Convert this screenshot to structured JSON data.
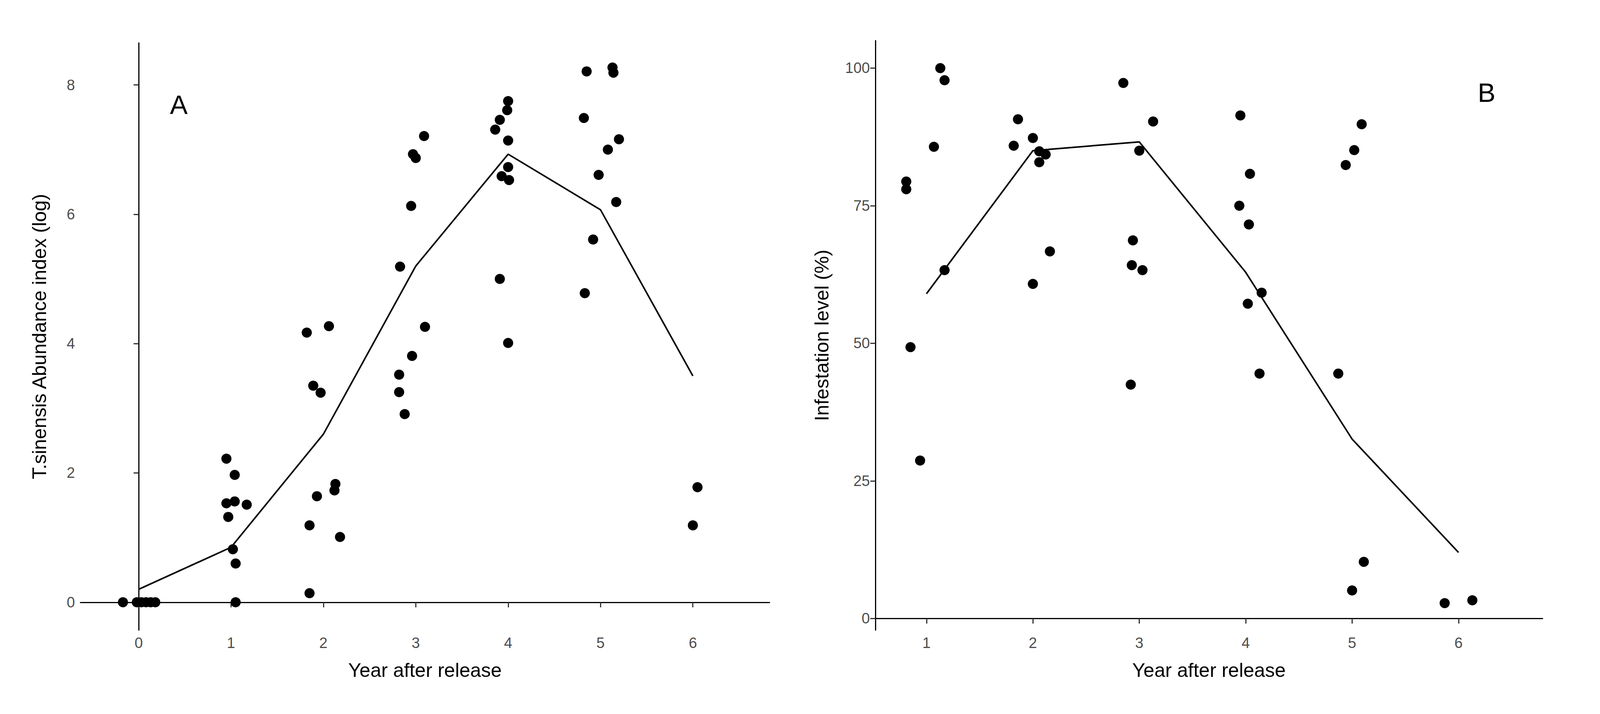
{
  "chart_data": [
    {
      "type": "scatter",
      "annotations": [
        "A"
      ],
      "x_label": "Year after release",
      "y_label": "T.sinensis Abundance index (log)",
      "xlim": [
        -0.63,
        6.83
      ],
      "xticks": [
        0,
        1,
        2,
        3,
        4,
        5,
        6
      ],
      "ylim": [
        -0.43,
        8.65
      ],
      "yticks": [
        0,
        2,
        4,
        6,
        8
      ],
      "grid": false,
      "series": [
        {
          "type": "scatter",
          "color": "#000000",
          "marker": "circle",
          "x": [
            -0.17,
            -0.02,
            0.03,
            0.08,
            0.13,
            0.18,
            0.95,
            1.04,
            0.95,
            1.04,
            1.17,
            0.97,
            1.02,
            1.05,
            1.05,
            1.82,
            2.06,
            1.89,
            1.97,
            2.13,
            2.12,
            1.93,
            1.85,
            2.18,
            1.85,
            3.09,
            2.97,
            3.0,
            2.95,
            2.83,
            3.1,
            2.96,
            2.82,
            2.82,
            2.88,
            4.0,
            3.99,
            3.91,
            3.86,
            4.0,
            4.0,
            3.93,
            4.01,
            3.91,
            4.0,
            5.13,
            4.85,
            5.14,
            4.82,
            5.2,
            5.08,
            4.98,
            5.17,
            4.92,
            4.83,
            6.05,
            6.0
          ],
          "values": [
            0,
            0,
            0,
            0,
            0,
            0,
            2.22,
            1.97,
            1.53,
            1.56,
            1.51,
            1.32,
            0.82,
            0.6,
            0,
            4.17,
            4.27,
            3.35,
            3.24,
            1.83,
            1.73,
            1.64,
            1.19,
            1.01,
            0.14,
            7.21,
            6.93,
            6.87,
            6.13,
            5.19,
            4.26,
            3.81,
            3.52,
            3.25,
            2.91,
            7.75,
            7.61,
            7.46,
            7.31,
            7.14,
            6.73,
            6.59,
            6.53,
            5.0,
            4.01,
            8.27,
            8.21,
            8.19,
            7.49,
            7.16,
            7.0,
            6.61,
            6.19,
            5.61,
            4.78,
            1.78,
            1.19
          ]
        },
        {
          "type": "line",
          "color": "#000000",
          "line_style": "solid",
          "x": [
            0,
            1,
            2,
            3,
            4,
            5,
            6
          ],
          "values": [
            0.2,
            0.85,
            2.6,
            5.2,
            6.93,
            6.07,
            3.5
          ]
        }
      ]
    },
    {
      "type": "scatter",
      "annotations": [
        "B"
      ],
      "x_label": "Year after release",
      "y_label": "Infestation level (%)",
      "xlim": [
        0.52,
        6.79
      ],
      "xticks": [
        1,
        2,
        3,
        4,
        5,
        6
      ],
      "ylim": [
        -2.1,
        105
      ],
      "yticks": [
        0,
        25,
        50,
        75,
        100
      ],
      "grid": false,
      "series": [
        {
          "type": "scatter",
          "color": "#000000",
          "marker": "circle",
          "x": [
            1.13,
            1.17,
            1.07,
            0.81,
            0.81,
            1.17,
            0.85,
            0.94,
            1.86,
            2.0,
            1.82,
            2.06,
            2.12,
            2.06,
            2.16,
            2.0,
            2.85,
            3.13,
            3.0,
            2.94,
            2.93,
            3.03,
            2.92,
            3.95,
            4.04,
            3.94,
            4.03,
            4.15,
            4.02,
            4.13,
            5.09,
            5.02,
            4.94,
            4.87,
            5.11,
            5.0,
            6.13,
            5.87
          ],
          "values": [
            100,
            97.8,
            85.7,
            79.4,
            78,
            63.3,
            49.3,
            28.7,
            90.7,
            87.3,
            85.9,
            84.9,
            84.3,
            82.9,
            66.7,
            60.8,
            97.3,
            90.3,
            85,
            68.7,
            64.2,
            63.3,
            42.5,
            91.4,
            80.8,
            75,
            71.6,
            59.2,
            57.2,
            44.5,
            89.8,
            85.1,
            82.4,
            44.5,
            10.3,
            5.1,
            3.3,
            2.8
          ]
        },
        {
          "type": "line",
          "color": "#000000",
          "line_style": "solid",
          "x": [
            1,
            2,
            3,
            4,
            5,
            6
          ],
          "values": [
            59,
            85,
            86.6,
            62.9,
            32.6,
            12
          ]
        }
      ]
    }
  ]
}
